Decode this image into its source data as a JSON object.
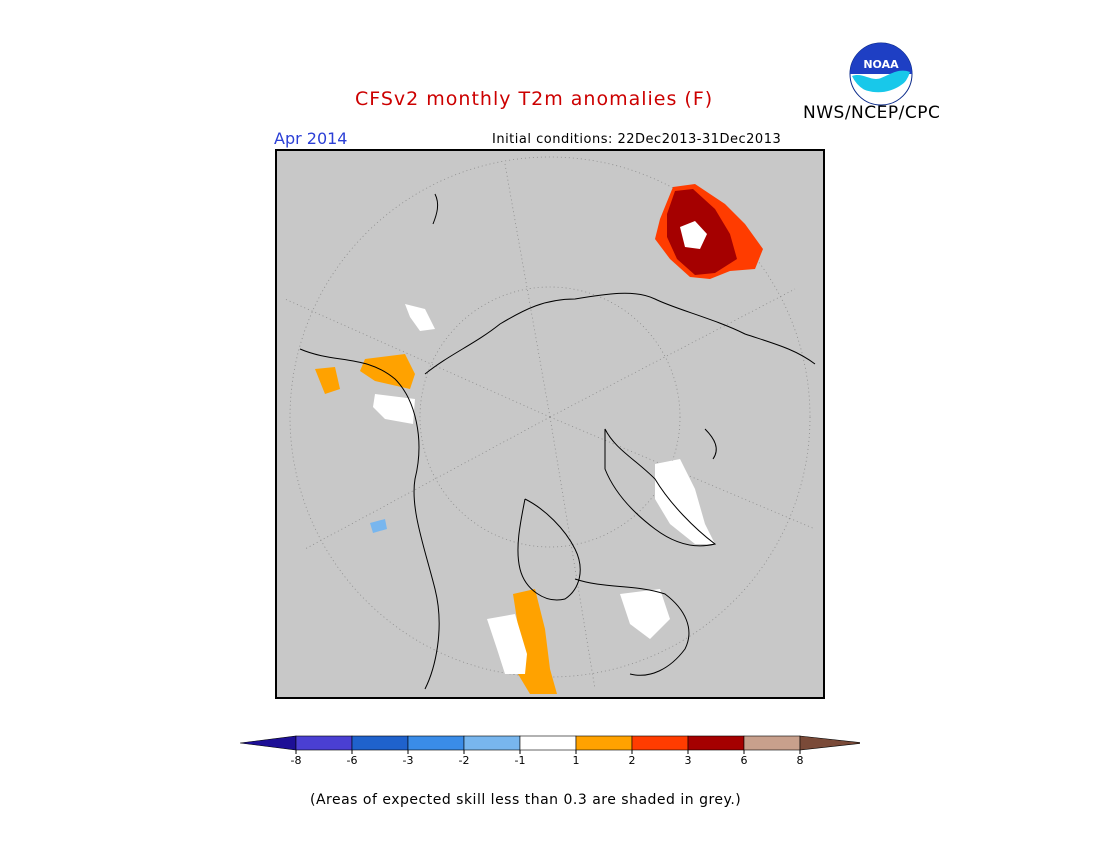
{
  "header": {
    "title": "CFSv2 monthly T2m anomalies (F)",
    "agency": "NWS/NCEP/CPC",
    "logo_text": "NOAA",
    "month": "Apr 2014",
    "initial_conditions": "Initial conditions: 22Dec2013-31Dec2013"
  },
  "colors": {
    "title": "#cc0000",
    "month": "#2b3fd6",
    "map_background": "#c8c8c8",
    "coastline": "#000000",
    "graticule": "#8a8a8a"
  },
  "colorbar": {
    "tick_labels": [
      "-8",
      "-6",
      "-3",
      "-2",
      "-1",
      "1",
      "2",
      "3",
      "6",
      "8"
    ],
    "bins": [
      {
        "label": "< -8",
        "color": "#1d0f96"
      },
      {
        "label": "-8 to -6",
        "color": "#4a3fd2"
      },
      {
        "label": "-6 to -3",
        "color": "#1f62cc"
      },
      {
        "label": "-3 to -2",
        "color": "#3a8ce8"
      },
      {
        "label": "-2 to -1",
        "color": "#78b6ee"
      },
      {
        "label": "-1 to 1",
        "color": "#ffffff"
      },
      {
        "label": "1 to 2",
        "color": "#ffa200"
      },
      {
        "label": "2 to 3",
        "color": "#ff3c00"
      },
      {
        "label": "3 to 6",
        "color": "#a50000"
      },
      {
        "label": "6 to 8",
        "color": "#c8a08c"
      },
      {
        "label": "> 8",
        "color": "#7a4a38"
      }
    ]
  },
  "footer": {
    "note": "(Areas of expected skill less than 0.3 are shaded in grey.)"
  }
}
